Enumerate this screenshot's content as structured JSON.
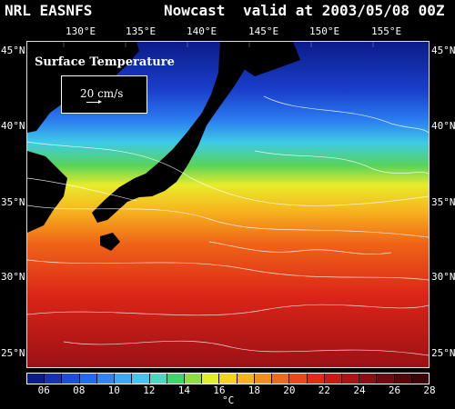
{
  "header": {
    "model": "NRL EASNFS",
    "product": "Nowcast",
    "valid": "valid at 2003/05/08 00Z"
  },
  "map": {
    "overlay_title": "Surface Temperature",
    "reference_vector": "20 cm/s",
    "lon_labels": [
      "130°E",
      "135°E",
      "140°E",
      "145°E",
      "150°E",
      "155°E"
    ],
    "lat_labels": [
      "45°N",
      "40°N",
      "35°N",
      "30°N",
      "25°N"
    ],
    "land_color": "#000000",
    "vector_color": "#ffffff"
  },
  "colorbar": {
    "unit": "°C",
    "tick_labels": [
      "06",
      "08",
      "10",
      "12",
      "14",
      "16",
      "18",
      "20",
      "22",
      "24",
      "26",
      "28"
    ],
    "colors": [
      "#0b1b8a",
      "#1630b8",
      "#1f4ddb",
      "#2369f2",
      "#2e86f5",
      "#3aa8f5",
      "#44c6e8",
      "#4ad8c3",
      "#40d46b",
      "#90de3d",
      "#e3ee2b",
      "#f6d21e",
      "#f7b21e",
      "#f48d1a",
      "#ef6a18",
      "#ea4817",
      "#e22a17",
      "#cc1818",
      "#ad1217",
      "#8d0d14",
      "#6d0910",
      "#540709",
      "#3b0507"
    ]
  }
}
